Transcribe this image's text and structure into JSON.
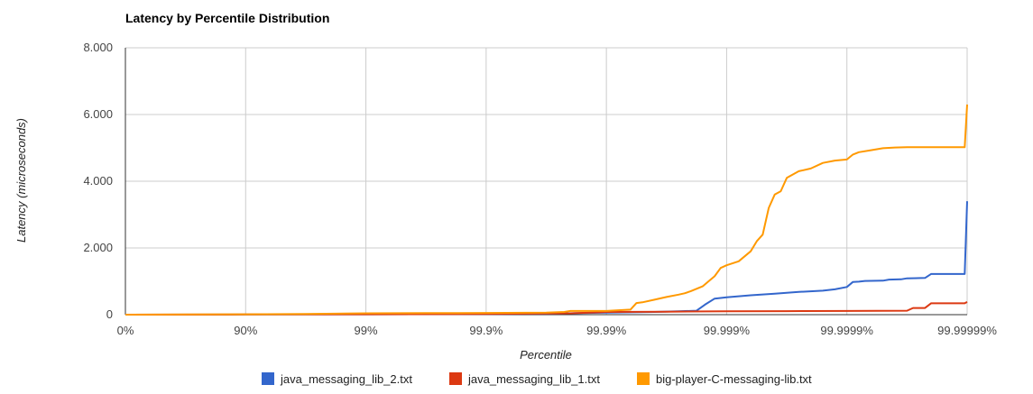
{
  "chart_data": {
    "type": "line",
    "title": "Latency by Percentile Distribution",
    "xlabel": "Percentile",
    "ylabel": "Latency (microseconds)",
    "x_scale": "inverse-log (1/(1-p))",
    "x_ticks": [
      "0%",
      "90%",
      "99%",
      "99.9%",
      "99.99%",
      "99.999%",
      "99.9999%",
      "99.99999%"
    ],
    "y_ticks": [
      "0",
      "2.000",
      "4.000",
      "6.000",
      "8.000"
    ],
    "ylim": [
      0,
      8000
    ],
    "grid": true,
    "legend_position": "bottom",
    "series": [
      {
        "name": "java_messaging_lib_2.txt",
        "color": "#3366cc",
        "points": [
          [
            0,
            0
          ],
          [
            1,
            5
          ],
          [
            2,
            10
          ],
          [
            3,
            20
          ],
          [
            3.5,
            30
          ],
          [
            4,
            60
          ],
          [
            4.4,
            80
          ],
          [
            4.6,
            100
          ],
          [
            4.75,
            120
          ],
          [
            4.82,
            300
          ],
          [
            4.9,
            480
          ],
          [
            5.0,
            520
          ],
          [
            5.2,
            580
          ],
          [
            5.4,
            630
          ],
          [
            5.6,
            680
          ],
          [
            5.8,
            720
          ],
          [
            5.9,
            760
          ],
          [
            6.0,
            830
          ],
          [
            6.05,
            980
          ],
          [
            6.1,
            990
          ],
          [
            6.15,
            1010
          ],
          [
            6.3,
            1020
          ],
          [
            6.35,
            1050
          ],
          [
            6.45,
            1060
          ],
          [
            6.5,
            1090
          ],
          [
            6.65,
            1100
          ],
          [
            6.7,
            1220
          ],
          [
            6.98,
            1220
          ],
          [
            7.0,
            3400
          ]
        ]
      },
      {
        "name": "java_messaging_lib_1.txt",
        "color": "#dc3912",
        "points": [
          [
            0,
            0
          ],
          [
            1,
            5
          ],
          [
            2,
            10
          ],
          [
            3,
            20
          ],
          [
            3.7,
            40
          ],
          [
            3.95,
            70
          ],
          [
            4.0,
            80
          ],
          [
            4.5,
            90
          ],
          [
            5.0,
            100
          ],
          [
            5.5,
            105
          ],
          [
            6.0,
            110
          ],
          [
            6.5,
            120
          ],
          [
            6.55,
            200
          ],
          [
            6.65,
            200
          ],
          [
            6.7,
            340
          ],
          [
            6.98,
            340
          ],
          [
            7.0,
            380
          ]
        ]
      },
      {
        "name": "big-player-C-messaging-lib.txt",
        "color": "#ff9900",
        "points": [
          [
            0,
            0
          ],
          [
            0.5,
            5
          ],
          [
            1,
            10
          ],
          [
            1.5,
            20
          ],
          [
            1.75,
            30
          ],
          [
            2,
            40
          ],
          [
            2.5,
            45
          ],
          [
            3.0,
            50
          ],
          [
            3.5,
            60
          ],
          [
            3.65,
            80
          ],
          [
            3.7,
            110
          ],
          [
            4.0,
            110
          ],
          [
            4.2,
            150
          ],
          [
            4.25,
            350
          ],
          [
            4.3,
            370
          ],
          [
            4.4,
            450
          ],
          [
            4.5,
            530
          ],
          [
            4.6,
            600
          ],
          [
            4.65,
            640
          ],
          [
            4.7,
            700
          ],
          [
            4.8,
            850
          ],
          [
            4.85,
            1000
          ],
          [
            4.9,
            1150
          ],
          [
            4.95,
            1400
          ],
          [
            5.0,
            1480
          ],
          [
            5.1,
            1600
          ],
          [
            5.2,
            1900
          ],
          [
            5.25,
            2200
          ],
          [
            5.3,
            2400
          ],
          [
            5.35,
            3200
          ],
          [
            5.4,
            3600
          ],
          [
            5.45,
            3700
          ],
          [
            5.5,
            4100
          ],
          [
            5.6,
            4300
          ],
          [
            5.7,
            4380
          ],
          [
            5.8,
            4550
          ],
          [
            5.9,
            4620
          ],
          [
            6.0,
            4650
          ],
          [
            6.05,
            4800
          ],
          [
            6.1,
            4870
          ],
          [
            6.2,
            4930
          ],
          [
            6.3,
            4990
          ],
          [
            6.4,
            5010
          ],
          [
            6.5,
            5020
          ],
          [
            6.98,
            5020
          ],
          [
            7.0,
            6300
          ]
        ]
      }
    ]
  }
}
